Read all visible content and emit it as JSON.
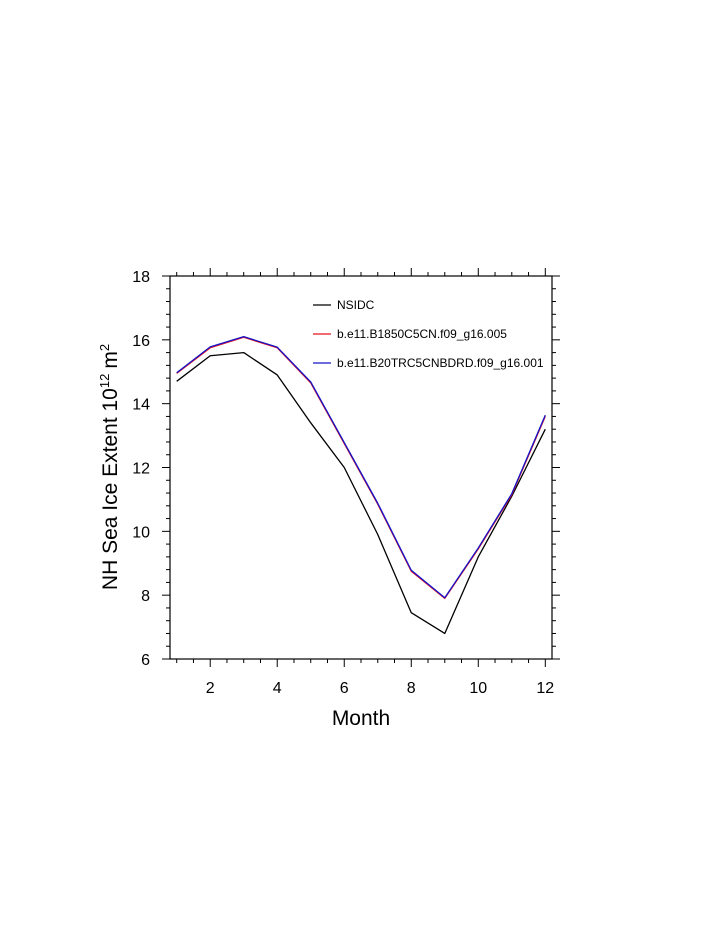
{
  "chart_data": {
    "type": "line",
    "x": [
      1,
      2,
      3,
      4,
      5,
      6,
      7,
      8,
      9,
      10,
      11,
      12
    ],
    "xlabel": "Month",
    "ylabel": "NH Sea Ice Extent 10",
    "ylabel_exponent": "12",
    "ylabel_unit": "m",
    "ylabel_unit_exponent": "2",
    "xlim": [
      0.8,
      12.2
    ],
    "ylim": [
      6,
      18
    ],
    "xticks": [
      2,
      4,
      6,
      8,
      10,
      12
    ],
    "yticks": [
      6,
      8,
      10,
      12,
      14,
      16,
      18
    ],
    "grid": false,
    "legend_position": "top-right, inside plot",
    "series": [
      {
        "name": "NSIDC",
        "color": "#000000",
        "values": [
          14.7,
          15.5,
          15.6,
          14.9,
          13.4,
          12.0,
          9.9,
          7.45,
          6.8,
          9.2,
          11.1,
          13.2
        ]
      },
      {
        "name": "b.e11.B1850C5CN.f09_g16.005",
        "color": "#e8141e",
        "values": [
          14.95,
          15.75,
          16.08,
          15.75,
          14.65,
          12.75,
          10.85,
          8.75,
          7.9,
          9.45,
          11.15,
          13.6
        ]
      },
      {
        "name": "b.e11.B20TRC5CNBDRD.f09_g16.001",
        "color": "#1414c8",
        "values": [
          14.97,
          15.78,
          16.1,
          15.77,
          14.68,
          12.78,
          10.88,
          8.78,
          7.92,
          9.48,
          11.18,
          13.64
        ]
      }
    ]
  }
}
